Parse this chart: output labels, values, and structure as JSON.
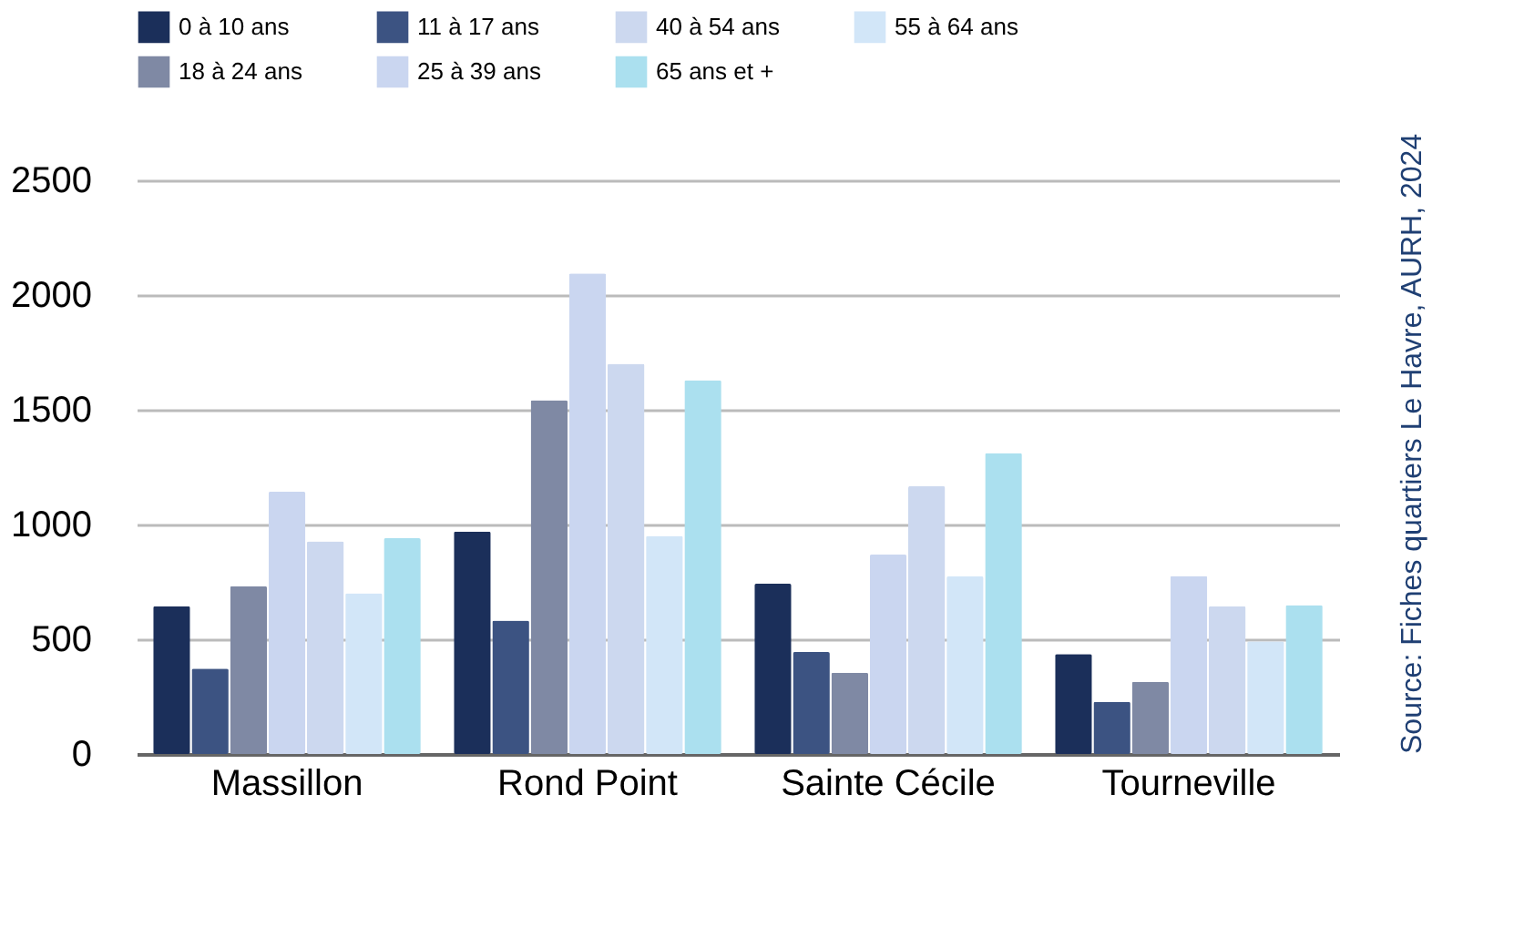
{
  "chart_data": {
    "type": "bar",
    "categories": [
      "Massillon",
      "Rond Point",
      "Sainte Cécile",
      "Tourneville"
    ],
    "series": [
      {
        "name": "0 à 10 ans",
        "color": "#1b2f5a",
        "values": [
          644,
          969,
          742,
          436
        ]
      },
      {
        "name": "11 à 17 ans",
        "color": "#3c5382",
        "values": [
          372,
          581,
          444,
          227
        ]
      },
      {
        "name": "18 à 24 ans",
        "color": "#7f89a4",
        "values": [
          731,
          1542,
          354,
          314
        ]
      },
      {
        "name": "25 à 39 ans",
        "color": "#cad6f0",
        "values": [
          1143,
          2094,
          869,
          776
        ]
      },
      {
        "name": "40 à 54 ans",
        "color": "#ccd8ef",
        "values": [
          927,
          1700,
          1167,
          644
        ]
      },
      {
        "name": "55 à 64 ans",
        "color": "#d2e6f8",
        "values": [
          700,
          950,
          774,
          491
        ]
      },
      {
        "name": "65 ans et +",
        "color": "#abe0ef",
        "values": [
          940,
          1629,
          1312,
          649
        ]
      }
    ],
    "ylim": [
      0,
      2500
    ],
    "yticks": [
      0,
      500,
      1000,
      1500,
      2000,
      2500
    ],
    "grid": "y",
    "legend": "top",
    "annotations": [
      "Source: Fiches quartiers Le Havre, AURH, 2024"
    ]
  }
}
